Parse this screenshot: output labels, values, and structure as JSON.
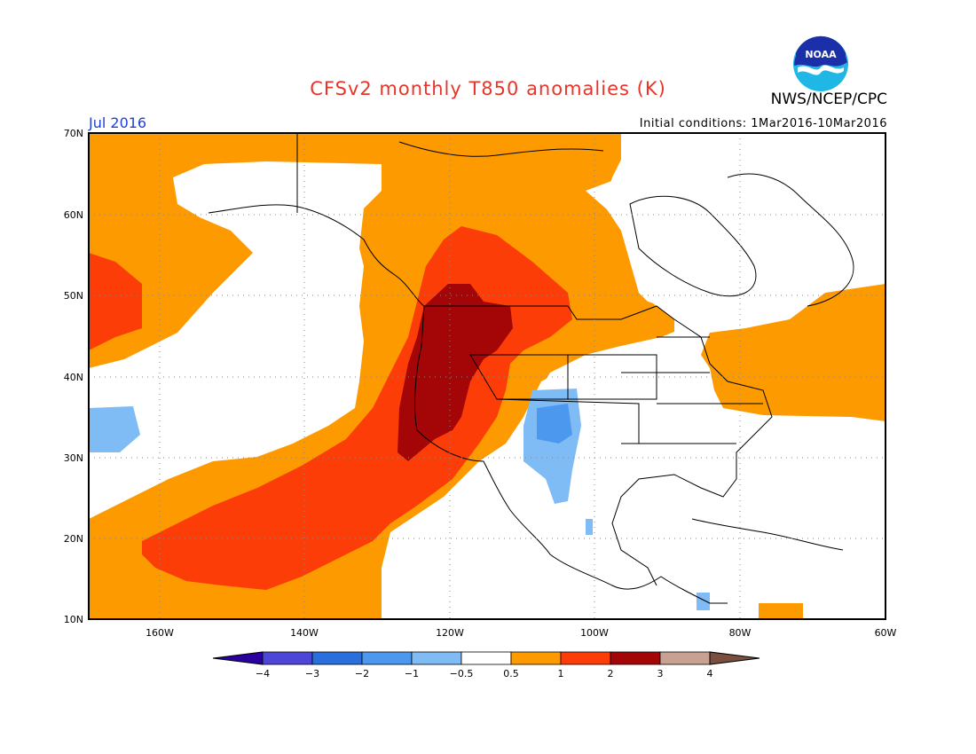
{
  "header": {
    "title": "CFSv2 monthly T850 anomalies (K)",
    "agency": "NWS/NCEP/CPC",
    "month": "Jul 2016",
    "initial_conditions": "Initial conditions: 1Mar2016-10Mar2016",
    "logo_text": "NOAA"
  },
  "axes": {
    "lat_labels": [
      "70N",
      "60N",
      "50N",
      "40N",
      "30N",
      "20N",
      "10N"
    ],
    "lon_labels": [
      "160W",
      "140W",
      "120W",
      "100W",
      "80W",
      "60W"
    ],
    "lat_range": [
      10,
      70
    ],
    "lon_range": [
      -172,
      -60
    ],
    "grid": "dotted"
  },
  "colorbar": {
    "labels": [
      "-4",
      "-3",
      "-2",
      "-1",
      "-0.5",
      "0.5",
      "1",
      "2",
      "3",
      "4"
    ],
    "colors": [
      "#2a00a0",
      "#4d47d8",
      "#2a6fdc",
      "#4c98ee",
      "#7fbcf5",
      "#ffffff",
      "#fd9a00",
      "#fc3d08",
      "#a40608",
      "#c7a292",
      "#7a4f3e"
    ]
  },
  "legend_colors": {
    "anom_1": "#fd9a00",
    "anom_2": "#fc3d08",
    "anom_3": "#a40608",
    "neg_small": "#7fbcf5",
    "neg_mid": "#4c98ee"
  }
}
